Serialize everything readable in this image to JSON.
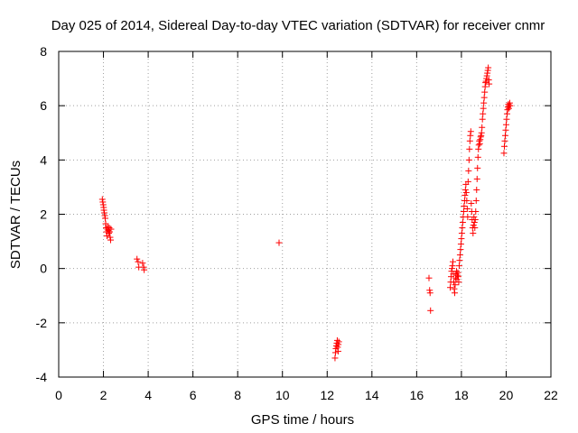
{
  "chart_data": {
    "type": "scatter",
    "title": "Day 025 of 2014, Sidereal Day-to-day VTEC variation (SDTVAR) for receiver cnmr",
    "xlabel": "GPS time / hours",
    "ylabel": "SDTVAR / TECUs",
    "xlim": [
      0,
      22
    ],
    "ylim": [
      -4,
      8
    ],
    "xticks": [
      0,
      2,
      4,
      6,
      8,
      10,
      12,
      14,
      16,
      18,
      20,
      22
    ],
    "yticks": [
      -4,
      -2,
      0,
      2,
      4,
      6,
      8
    ],
    "grid": true,
    "marker": "+",
    "color": "#ff0000",
    "series": [
      {
        "name": "SDTVAR",
        "points": [
          [
            1.95,
            2.55
          ],
          [
            1.97,
            2.45
          ],
          [
            1.99,
            2.35
          ],
          [
            2.01,
            2.25
          ],
          [
            2.02,
            2.15
          ],
          [
            2.04,
            2.05
          ],
          [
            2.06,
            1.95
          ],
          [
            2.08,
            1.85
          ],
          [
            2.1,
            1.65
          ],
          [
            2.12,
            1.5
          ],
          [
            2.14,
            1.35
          ],
          [
            2.16,
            1.2
          ],
          [
            2.18,
            1.45
          ],
          [
            2.2,
            1.55
          ],
          [
            2.22,
            1.4
          ],
          [
            2.24,
            1.3
          ],
          [
            2.26,
            1.5
          ],
          [
            2.28,
            1.35
          ],
          [
            2.3,
            1.15
          ],
          [
            2.32,
            1.05
          ],
          [
            2.34,
            1.45
          ],
          [
            3.5,
            0.35
          ],
          [
            3.55,
            0.25
          ],
          [
            3.58,
            0.05
          ],
          [
            3.75,
            0.2
          ],
          [
            3.8,
            0.05
          ],
          [
            3.82,
            -0.05
          ],
          [
            9.85,
            0.95
          ],
          [
            12.35,
            -3.3
          ],
          [
            12.37,
            -3.1
          ],
          [
            12.39,
            -2.95
          ],
          [
            12.41,
            -2.85
          ],
          [
            12.43,
            -2.75
          ],
          [
            12.45,
            -2.65
          ],
          [
            12.47,
            -2.9
          ],
          [
            12.49,
            -3.05
          ],
          [
            12.5,
            -2.8
          ],
          [
            12.52,
            -2.7
          ],
          [
            16.55,
            -0.35
          ],
          [
            16.58,
            -0.8
          ],
          [
            16.6,
            -0.9
          ],
          [
            16.62,
            -1.55
          ],
          [
            17.5,
            -0.7
          ],
          [
            17.52,
            -0.5
          ],
          [
            17.54,
            -0.3
          ],
          [
            17.56,
            -0.1
          ],
          [
            17.58,
            0.0
          ],
          [
            17.6,
            0.1
          ],
          [
            17.62,
            0.25
          ],
          [
            17.64,
            -0.2
          ],
          [
            17.66,
            -0.5
          ],
          [
            17.68,
            -0.75
          ],
          [
            17.7,
            -0.9
          ],
          [
            17.72,
            -0.6
          ],
          [
            17.74,
            -0.35
          ],
          [
            17.76,
            -0.2
          ],
          [
            17.78,
            -0.1
          ],
          [
            17.8,
            -0.4
          ],
          [
            17.82,
            -0.25
          ],
          [
            17.84,
            -0.15
          ],
          [
            17.86,
            -0.3
          ],
          [
            17.88,
            -0.5
          ],
          [
            17.9,
            0.1
          ],
          [
            17.92,
            0.3
          ],
          [
            17.94,
            0.5
          ],
          [
            17.96,
            0.7
          ],
          [
            17.98,
            0.9
          ],
          [
            18.0,
            1.1
          ],
          [
            18.02,
            1.3
          ],
          [
            18.04,
            1.5
          ],
          [
            18.06,
            1.7
          ],
          [
            18.08,
            1.9
          ],
          [
            18.1,
            2.1
          ],
          [
            18.12,
            2.3
          ],
          [
            18.14,
            2.5
          ],
          [
            18.16,
            2.7
          ],
          [
            18.18,
            2.9
          ],
          [
            18.2,
            3.1
          ],
          [
            18.22,
            2.8
          ],
          [
            18.24,
            2.5
          ],
          [
            18.26,
            2.2
          ],
          [
            18.28,
            1.9
          ],
          [
            18.3,
            3.2
          ],
          [
            18.32,
            3.6
          ],
          [
            18.34,
            4.0
          ],
          [
            18.36,
            4.4
          ],
          [
            18.38,
            4.7
          ],
          [
            18.4,
            4.9
          ],
          [
            18.42,
            5.05
          ],
          [
            18.44,
            2.4
          ],
          [
            18.46,
            2.1
          ],
          [
            18.48,
            1.8
          ],
          [
            18.5,
            1.5
          ],
          [
            18.52,
            1.3
          ],
          [
            18.54,
            1.6
          ],
          [
            18.56,
            1.9
          ],
          [
            18.58,
            1.7
          ],
          [
            18.6,
            1.5
          ],
          [
            18.62,
            1.8
          ],
          [
            18.64,
            2.1
          ],
          [
            18.66,
            2.5
          ],
          [
            18.68,
            2.9
          ],
          [
            18.7,
            3.3
          ],
          [
            18.72,
            3.7
          ],
          [
            18.74,
            4.1
          ],
          [
            18.76,
            4.4
          ],
          [
            18.78,
            4.55
          ],
          [
            18.8,
            4.7
          ],
          [
            18.82,
            4.6
          ],
          [
            18.84,
            4.75
          ],
          [
            18.86,
            4.85
          ],
          [
            18.88,
            4.9
          ],
          [
            18.9,
            5.0
          ],
          [
            18.92,
            5.2
          ],
          [
            18.94,
            5.5
          ],
          [
            18.96,
            5.7
          ],
          [
            18.98,
            5.9
          ],
          [
            19.0,
            6.1
          ],
          [
            19.02,
            6.3
          ],
          [
            19.04,
            6.5
          ],
          [
            19.06,
            6.7
          ],
          [
            19.08,
            6.85
          ],
          [
            19.1,
            6.9
          ],
          [
            19.12,
            7.0
          ],
          [
            19.14,
            7.1
          ],
          [
            19.16,
            7.2
          ],
          [
            19.18,
            7.3
          ],
          [
            19.2,
            7.4
          ],
          [
            19.22,
            6.95
          ],
          [
            19.24,
            6.8
          ],
          [
            19.9,
            4.25
          ],
          [
            19.92,
            4.5
          ],
          [
            19.94,
            4.7
          ],
          [
            19.96,
            4.9
          ],
          [
            19.98,
            5.1
          ],
          [
            20.0,
            5.3
          ],
          [
            20.02,
            5.5
          ],
          [
            20.04,
            5.7
          ],
          [
            20.06,
            5.85
          ],
          [
            20.08,
            5.95
          ],
          [
            20.1,
            6.05
          ],
          [
            20.12,
            5.9
          ],
          [
            20.14,
            6.0
          ],
          [
            20.16,
            6.1
          ],
          [
            20.18,
            6.0
          ]
        ]
      }
    ]
  }
}
